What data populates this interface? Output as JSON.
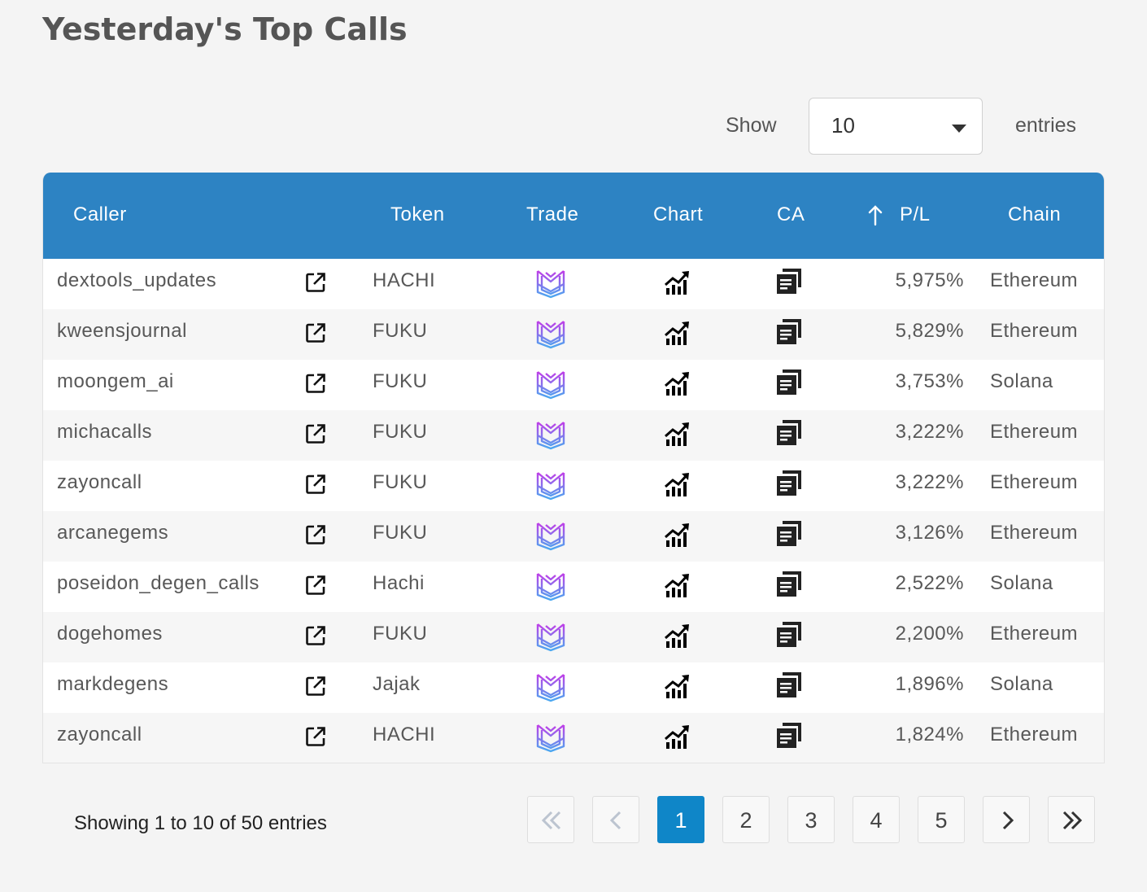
{
  "title": "Yesterday's Top Calls",
  "length_menu": {
    "show_label": "Show",
    "selected": "10",
    "entries_label": "entries"
  },
  "columns": {
    "caller": "Caller",
    "token": "Token",
    "trade": "Trade",
    "chart": "Chart",
    "ca": "CA",
    "pl": "P/L",
    "chain": "Chain"
  },
  "rows": [
    {
      "caller": "dextools_updates",
      "token": "HACHI",
      "pl": "5,975%",
      "chain": "Ethereum"
    },
    {
      "caller": "kweensjournal",
      "token": "FUKU",
      "pl": "5,829%",
      "chain": "Ethereum"
    },
    {
      "caller": "moongem_ai",
      "token": "FUKU",
      "pl": "3,753%",
      "chain": "Solana"
    },
    {
      "caller": "michacalls",
      "token": "FUKU",
      "pl": "3,222%",
      "chain": "Ethereum"
    },
    {
      "caller": "zayoncall",
      "token": "FUKU",
      "pl": "3,222%",
      "chain": "Ethereum"
    },
    {
      "caller": "arcanegems",
      "token": "FUKU",
      "pl": "3,126%",
      "chain": "Ethereum"
    },
    {
      "caller": "poseidon_degen_calls",
      "token": "Hachi",
      "pl": "2,522%",
      "chain": "Solana"
    },
    {
      "caller": "dogehomes",
      "token": "FUKU",
      "pl": "2,200%",
      "chain": "Ethereum"
    },
    {
      "caller": "markdegens",
      "token": "Jajak",
      "pl": "1,896%",
      "chain": "Solana"
    },
    {
      "caller": "zayoncall",
      "token": "HACHI",
      "pl": "1,824%",
      "chain": "Ethereum"
    }
  ],
  "info": "Showing 1 to 10 of 50 entries",
  "pagination": {
    "pages": [
      "1",
      "2",
      "3",
      "4",
      "5"
    ],
    "current": "1"
  },
  "icons": {
    "caller_link": "external-link-icon",
    "trade": "trade-logo-icon",
    "chart": "bar-chart-icon",
    "ca": "copy-document-icon",
    "sort": "arrow-up-icon"
  },
  "colors": {
    "header_bg": "#2d83c3",
    "active_page": "#0f86c8",
    "trade_logo_purple": "#b43ce6",
    "trade_logo_blue": "#4aa8f0"
  }
}
